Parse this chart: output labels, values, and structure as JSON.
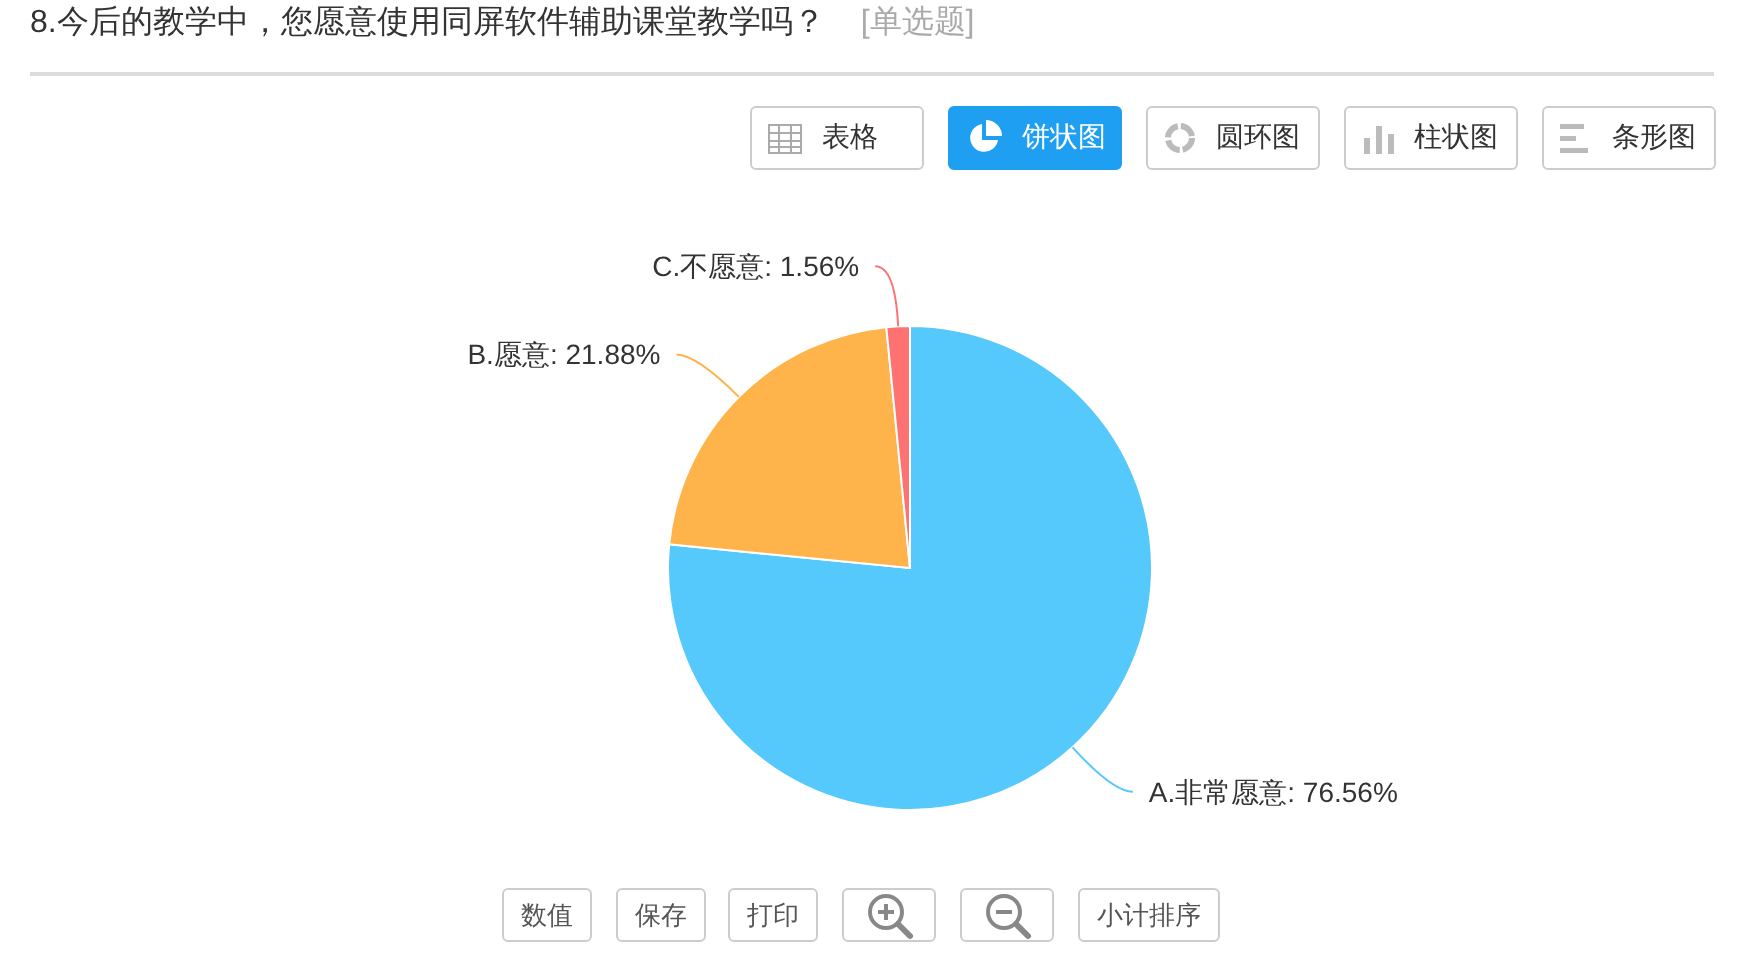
{
  "chart_data": {
    "type": "pie",
    "title": "8.今后的教学中，您愿意使用同屏软件辅助课堂教学吗？",
    "subtitle": "[单选题]",
    "categories": [
      "A.非常愿意",
      "B.愿意",
      "C.不愿意"
    ],
    "values": [
      76.56,
      21.88,
      1.56
    ],
    "value_labels": [
      "76.56%",
      "21.88%",
      "1.56%"
    ],
    "colors": [
      "#55c8fc",
      "#ffb34b",
      "#ff7272"
    ],
    "annotations": [
      "表格",
      "饼状图",
      "圆环图",
      "柱状图",
      "条形图",
      "数值",
      "保存",
      "打印",
      "小计排序"
    ]
  }
}
